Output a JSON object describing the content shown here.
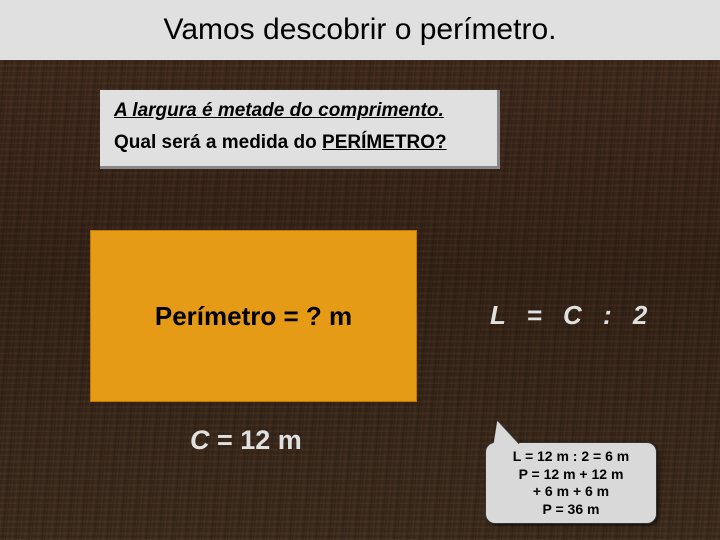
{
  "header": {
    "title": "Vamos descobrir o perímetro."
  },
  "info": {
    "line1": "A largura é metade do comprimento.",
    "line2_prefix": "Qual será a medida do ",
    "line2_emph": "PERÍMETRO?"
  },
  "orange": {
    "label": "Perímetro = ? m"
  },
  "c_label": {
    "var": "C",
    "rest": " = 12 m"
  },
  "formula": {
    "text": "L = C : 2"
  },
  "callout": {
    "l1": "L = 12 m : 2 = 6 m",
    "l2": "P = 12 m + 12 m",
    "l3": "+ 6 m + 6 m",
    "l4": "P = 36 m"
  },
  "colors": {
    "header_bg": "#e0e0e0",
    "info_bg": "#e0e0e0",
    "orange": "#e69b17",
    "callout_bg": "#d9d9d9",
    "light_text": "#e0e0e0"
  }
}
